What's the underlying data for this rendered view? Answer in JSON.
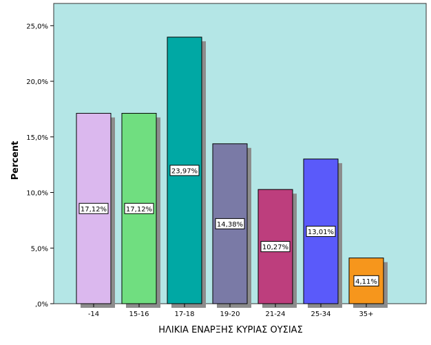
{
  "chart_data": {
    "type": "bar",
    "title": "",
    "xlabel": "ΗΛΙΚΙΑ ΕΝΑΡΞΗΣ ΚΥΡΙΑΣ ΟΥΣΙΑΣ",
    "ylabel": "Percent",
    "ylim": [
      0,
      27
    ],
    "yticks": [
      0,
      5,
      10,
      15,
      20,
      25
    ],
    "ytick_labels": [
      ",0%",
      "5,0%",
      "10,0%",
      "15,0%",
      "20,0%",
      "25,0%"
    ],
    "grid": false,
    "legend": "none",
    "background_color": "#b4e6e6",
    "categories": [
      "-14",
      "15-16",
      "17-18",
      "19-20",
      "21-24",
      "25-34",
      "35+"
    ],
    "values": [
      17.12,
      17.12,
      23.97,
      14.38,
      10.27,
      13.01,
      4.11
    ],
    "data_labels": [
      "17,12%",
      "17,12%",
      "23,97%",
      "14,38%",
      "10,27%",
      "13,01%",
      "4,11%"
    ],
    "colors": [
      "#dbb8ee",
      "#70de80",
      "#00a8a4",
      "#7a7aa6",
      "#bd3e7d",
      "#5a5afa",
      "#f6961c"
    ]
  }
}
